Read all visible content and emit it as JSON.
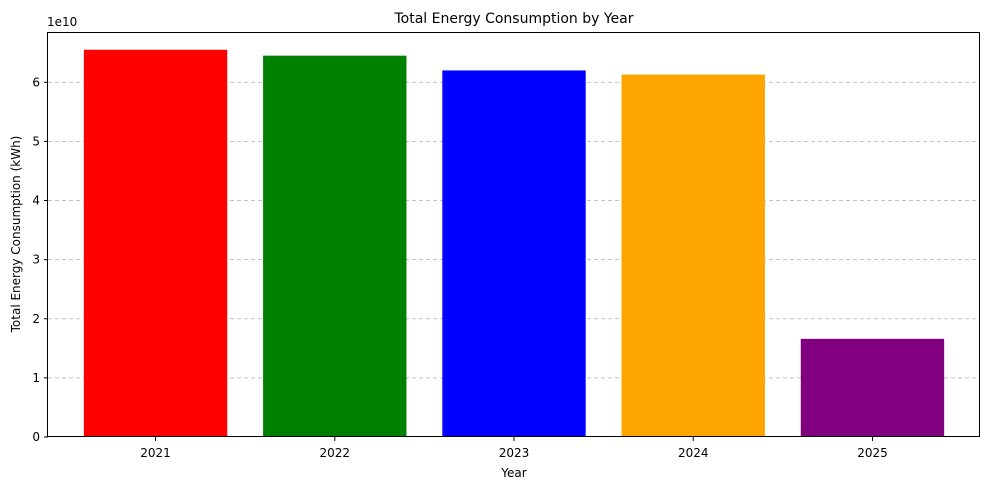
{
  "chart_data": {
    "type": "bar",
    "title": "Total Energy Consumption by Year",
    "xlabel": "Year",
    "ylabel": "Total Energy Consumption (kWh)",
    "offset_label": "1e10",
    "categories": [
      "2021",
      "2022",
      "2023",
      "2024",
      "2025"
    ],
    "values": [
      65500000000,
      64500000000,
      62000000000,
      61300000000,
      16600000000
    ],
    "colors": [
      "#ff0000",
      "#008000",
      "#0000ff",
      "#ffa500",
      "#800080"
    ],
    "ylim": [
      0,
      68500000000
    ],
    "yticks": [
      0,
      10000000000,
      20000000000,
      30000000000,
      40000000000,
      50000000000,
      60000000000
    ],
    "ytick_labels": [
      "0",
      "1",
      "2",
      "3",
      "4",
      "5",
      "6"
    ],
    "grid": "y-dashed",
    "legend": "none"
  }
}
